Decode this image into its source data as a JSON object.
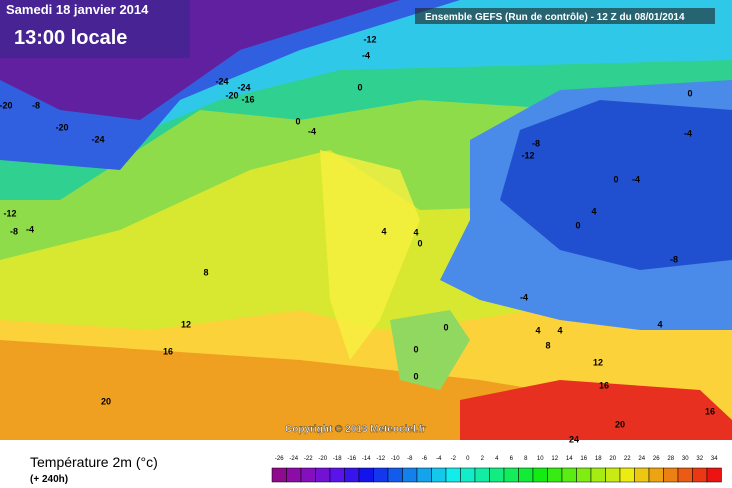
{
  "header": {
    "date": "Samedi 18 janvier 2014",
    "time": "13:00 locale",
    "model": "Ensemble GEFS (Run de contrôle)  -  12 Z du 08/01/2014"
  },
  "copyright": "Copyright © 2013 Meteociel.fr",
  "footer": {
    "title": "Température 2m (°c)",
    "lead": "(+ 240h)"
  },
  "colorbar": {
    "ticks": [
      -26,
      -24,
      -22,
      -20,
      -18,
      -16,
      -14,
      -12,
      -10,
      -8,
      -6,
      -4,
      -2,
      0,
      2,
      4,
      6,
      8,
      10,
      12,
      14,
      16,
      18,
      20,
      22,
      24,
      26,
      28,
      30,
      32,
      34
    ]
  },
  "contour_labels": [
    -12,
    -4,
    0,
    -24,
    -24,
    -20,
    -16,
    -20,
    -8,
    -20,
    -24,
    0,
    -4,
    0,
    -8,
    -12,
    -4,
    -4,
    0,
    -12,
    -8,
    -4,
    4,
    4,
    0,
    8,
    12,
    16,
    20,
    4,
    0,
    -4,
    -8,
    0,
    0,
    0,
    4,
    8,
    4,
    12,
    16,
    20,
    24,
    16,
    4
  ]
}
